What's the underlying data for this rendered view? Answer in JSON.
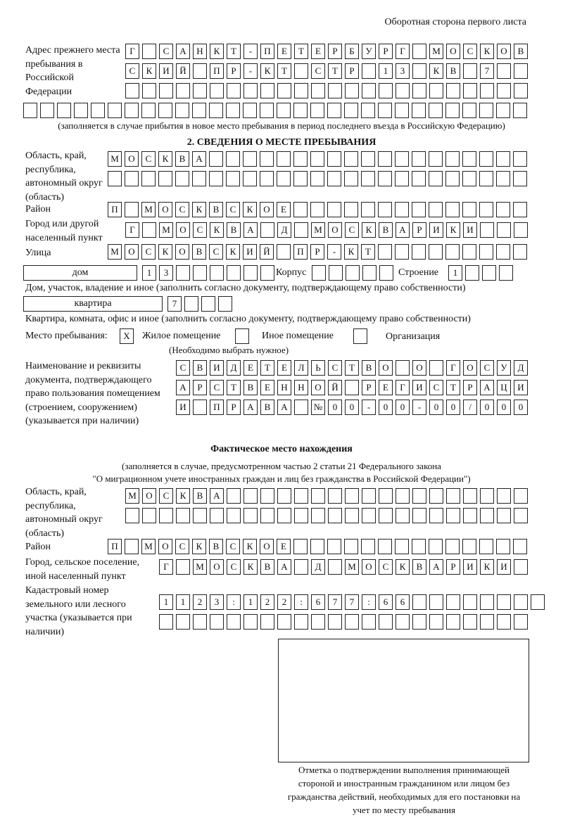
{
  "header": {
    "side_label": "Оборотная сторона первого листа"
  },
  "previous_address": {
    "label": "Адрес прежнего места пребывания в Российской Федерации",
    "rows": [
      "Г САНКТ-ПЕТЕРБУРГ МОСКОВ",
      "СКИЙ ПР-КТ СТР 13 КВ 7  ",
      "                        ",
      "                              "
    ],
    "note": "(заполняется в случае прибытия в новое место пребывания в период последнего въезда в Российскую Федерацию)"
  },
  "section2": {
    "title": "2. СВЕДЕНИЯ О МЕСТЕ ПРЕБЫВАНИЯ",
    "region_label": "Область, край, республика, автономный округ (область)",
    "region_rows": [
      "МОСКВА                   ",
      "                         "
    ],
    "district_label": "Район",
    "district_row": "П МОСКВСКОЕ              ",
    "city_label": "Город или другой населенный пункт",
    "city_row": "Г МОСКВА Д МОСКВАРИКИ   ",
    "street_label": "Улица",
    "street_row": "МОСКОВСКИЙ ПР-КТ         ",
    "house_type": "дом",
    "house_row": "13      ",
    "korpus_label": "Корпус",
    "korpus_row": "     ",
    "building_label": "Строение",
    "building_row": "1   ",
    "house_note": "Дом, участок, владение и иное (заполнить согласно документу, подтверждающему право собственности)",
    "apt_type": "квартира",
    "apt_row": "7   ",
    "apt_note": "Квартира, комната, офис и иное (заполнить согласно документу, подтверждающему право собственности)",
    "stay_label": "Место пребывания:",
    "stay_options": [
      {
        "label": "Жилое помещение",
        "mark": "X"
      },
      {
        "label": "Иное помещение",
        "mark": ""
      },
      {
        "label": "Организация",
        "mark": ""
      }
    ],
    "stay_note": "(Необходимо выбрать нужное)",
    "doc_label": "Наименование и реквизиты документа, подтверждающего право пользования помещением (строением, сооружением) (указывается при наличии)",
    "doc_rows": [
      "СВИДЕТЕЛЬСТВО О ГОСУД",
      "АРСТВЕННОЙ РЕГИСТРАЦИ",
      "И ПРАВА №00-00-00/000"
    ]
  },
  "actual_location": {
    "title": "Фактическое место нахождения",
    "note1": "(заполняется в случае, предусмотренном частью 2 статьи 21 Федерального закона",
    "note2": "\"О миграционном учете иностранных граждан и лиц без гражданства в Российской Федерации\")",
    "region_label": "Область, край, республика, автономный округ (область)",
    "region_rows": [
      "МОСКВА                  ",
      "                        "
    ],
    "district_label": "Район",
    "district_row": "П МОСКВСКОЕ              ",
    "city_label": "Город, сельское поселение, иной населенный пункт",
    "city_row": "Г МОСКВА Д МОСКВАРИКИ ",
    "cadastral_label": "Кадастровый номер земельного или лесного участка (указывается при наличии)",
    "cadastral_rows": [
      "1123:122:677:66        ",
      "                      "
    ]
  },
  "confirmation": {
    "caption": "Отметка о подтверждении выполнения принимающей стороной и иностранным гражданином или лицом без гражданства действий, необходимых для его постановки на учет по месту пребывания"
  }
}
